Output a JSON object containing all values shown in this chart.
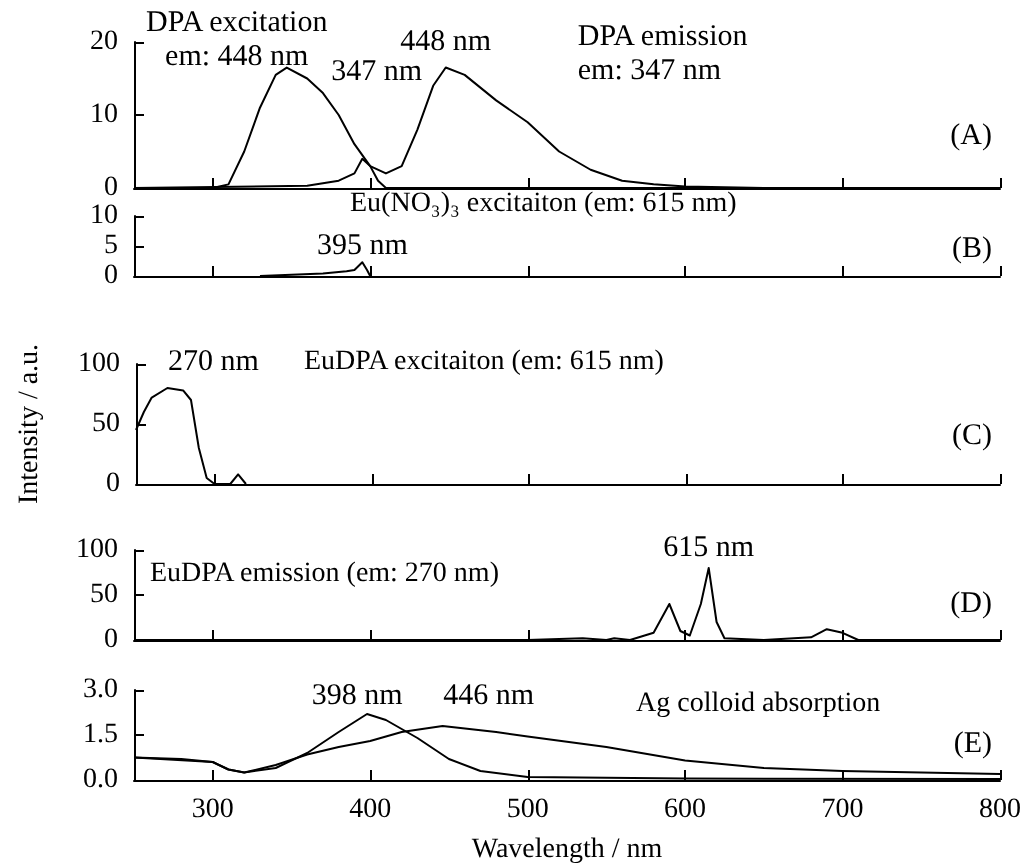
{
  "chart_data": [
    {
      "type": "line",
      "xlim": [
        250,
        800
      ],
      "xticks": [
        300,
        400,
        500,
        600,
        700,
        800
      ],
      "ylim": [
        0,
        20
      ],
      "yticks": [
        0,
        10,
        20
      ],
      "tick_labels": "y",
      "grid": false,
      "legend": false,
      "series": [
        {
          "name": "DPA excitation\nem: 448 nm",
          "color": "#000000",
          "x": [
            250,
            300,
            310,
            320,
            330,
            340,
            347,
            360,
            370,
            380,
            390,
            400,
            405,
            410,
            800
          ],
          "values": [
            0,
            0,
            0.5,
            5,
            11,
            15.5,
            16.5,
            15,
            13,
            10,
            6,
            3,
            1,
            0,
            0
          ]
        },
        {
          "name": "DPA emission\nem: 347 nm",
          "color": "#000000",
          "x": [
            250,
            360,
            380,
            390,
            395,
            400,
            410,
            420,
            430,
            440,
            448,
            460,
            480,
            500,
            520,
            540,
            560,
            580,
            600,
            650,
            800
          ],
          "values": [
            0,
            0.3,
            1,
            2,
            4,
            3,
            2,
            3,
            8,
            14,
            16.5,
            15.5,
            12,
            9,
            5,
            2.5,
            1,
            0.5,
            0.2,
            0,
            0
          ]
        }
      ],
      "annotations": [
        {
          "text": "347 nm",
          "x": 347,
          "y": 16.5
        },
        {
          "text": "448 nm",
          "x": 448,
          "y": 16.5
        },
        "(A)"
      ]
    },
    {
      "type": "line",
      "title": "Eu(NO₃)₃ excitaiton (em: 615 nm)",
      "xlim": [
        250,
        800
      ],
      "xticks": [
        300,
        400,
        500,
        600,
        700,
        800
      ],
      "ylim": [
        0,
        10
      ],
      "yticks": [
        0,
        5,
        10
      ],
      "tick_labels": "y",
      "grid": false,
      "legend": false,
      "series": [
        {
          "color": "#000000",
          "x": [
            330,
            350,
            370,
            385,
            390,
            395,
            398,
            400
          ],
          "values": [
            0,
            0.2,
            0.4,
            0.8,
            1,
            2.3,
            1,
            0
          ]
        }
      ],
      "annotations": [
        {
          "text": "395 nm",
          "x": 395,
          "y": 2.3
        },
        "(B)"
      ]
    },
    {
      "type": "line",
      "title": "EuDPA excitaiton (em: 615 nm)",
      "ylabel": "Intensity / a.u.",
      "xlim": [
        250,
        800
      ],
      "xticks": [
        300,
        400,
        500,
        600,
        700,
        800
      ],
      "ylim": [
        0,
        100
      ],
      "yticks": [
        0,
        50,
        100
      ],
      "tick_labels": "y",
      "grid": false,
      "legend": false,
      "series": [
        {
          "color": "#000000",
          "x": [
            250,
            255,
            260,
            270,
            280,
            285,
            290,
            295,
            300,
            310,
            315,
            320
          ],
          "values": [
            45,
            60,
            72,
            80,
            78,
            70,
            30,
            5,
            0,
            0,
            8,
            0
          ]
        }
      ],
      "annotations": [
        {
          "text": "270 nm",
          "x": 270,
          "y": 80
        },
        "(C)"
      ]
    },
    {
      "type": "line",
      "title": "EuDPA emission (em: 270 nm)",
      "xlim": [
        250,
        800
      ],
      "xticks": [
        300,
        400,
        500,
        600,
        700,
        800
      ],
      "ylim": [
        0,
        100
      ],
      "yticks": [
        0,
        50,
        100
      ],
      "tick_labels": "y",
      "grid": false,
      "legend": false,
      "series": [
        {
          "color": "#000000",
          "x": [
            250,
            500,
            535,
            550,
            555,
            565,
            580,
            590,
            597,
            603,
            610,
            615,
            620,
            625,
            650,
            680,
            690,
            700,
            710,
            800
          ],
          "values": [
            0,
            0,
            2,
            0,
            2,
            0,
            8,
            40,
            10,
            5,
            40,
            80,
            20,
            2,
            0,
            3,
            12,
            8,
            0,
            0
          ]
        }
      ],
      "annotations": [
        {
          "text": "615 nm",
          "x": 615,
          "y": 80
        },
        "(D)"
      ]
    },
    {
      "type": "line",
      "title": "Ag colloid absorption",
      "xlabel": "Wavelength / nm",
      "xlim": [
        250,
        800
      ],
      "xticks": [
        300,
        400,
        500,
        600,
        700,
        800
      ],
      "ylim": [
        0,
        3
      ],
      "yticks": [
        {
          "value": 0,
          "label": "0.0"
        },
        {
          "value": 1.5,
          "label": "1.5"
        },
        {
          "value": 3,
          "label": "3.0"
        }
      ],
      "grid": false,
      "legend": false,
      "series": [
        {
          "color": "#000000",
          "x": [
            250,
            280,
            300,
            310,
            320,
            340,
            360,
            380,
            398,
            410,
            430,
            450,
            470,
            500,
            600,
            800
          ],
          "values": [
            0.75,
            0.7,
            0.6,
            0.35,
            0.25,
            0.4,
            0.9,
            1.6,
            2.2,
            2.0,
            1.4,
            0.7,
            0.3,
            0.1,
            0.05,
            0.03
          ]
        },
        {
          "color": "#000000",
          "x": [
            250,
            300,
            310,
            320,
            340,
            360,
            380,
            400,
            420,
            446,
            480,
            500,
            550,
            600,
            650,
            700,
            800
          ],
          "values": [
            0.75,
            0.6,
            0.35,
            0.25,
            0.5,
            0.85,
            1.1,
            1.3,
            1.6,
            1.8,
            1.6,
            1.45,
            1.1,
            0.65,
            0.4,
            0.3,
            0.2
          ]
        }
      ],
      "annotations": [
        {
          "text": "398 nm",
          "x": 398,
          "y": 2.2
        },
        {
          "text": "446 nm",
          "x": 446,
          "y": 1.8
        },
        "(E)"
      ]
    }
  ]
}
